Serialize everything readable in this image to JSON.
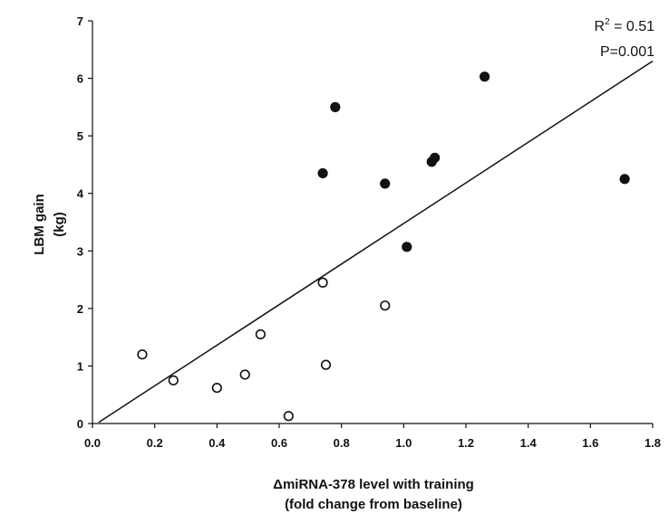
{
  "chart_data": {
    "type": "scatter",
    "xlabel_line1": "ΔmiRNA-378 level with training",
    "xlabel_line2": "(fold change from baseline)",
    "ylabel_line1": "LBM gain",
    "ylabel_line2": "(kg)",
    "xlim": [
      0,
      1.8
    ],
    "ylim": [
      0,
      7
    ],
    "x_ticks": [
      "0.0",
      "0.2",
      "0.4",
      "0.6",
      "0.8",
      "1.0",
      "1.2",
      "1.4",
      "1.6",
      "1.8"
    ],
    "y_ticks": [
      "0",
      "1",
      "2",
      "3",
      "4",
      "5",
      "6",
      "7"
    ],
    "stats": {
      "r2_prefix": "R",
      "r2_exp": "2",
      "r2_suffix": " = 0.51",
      "p_text": "P=0.001"
    },
    "fit_line": {
      "x": [
        0.02,
        1.8
      ],
      "y": [
        0.02,
        6.3
      ]
    },
    "series": [
      {
        "marker": "open-circle",
        "points": [
          {
            "x": 0.16,
            "y": 1.2
          },
          {
            "x": 0.26,
            "y": 0.75
          },
          {
            "x": 0.4,
            "y": 0.62
          },
          {
            "x": 0.49,
            "y": 0.85
          },
          {
            "x": 0.54,
            "y": 1.55
          },
          {
            "x": 0.63,
            "y": 0.13
          },
          {
            "x": 0.74,
            "y": 2.45
          },
          {
            "x": 0.75,
            "y": 1.02
          },
          {
            "x": 0.94,
            "y": 2.05
          }
        ]
      },
      {
        "marker": "filled-circle",
        "points": [
          {
            "x": 0.74,
            "y": 4.35
          },
          {
            "x": 0.78,
            "y": 5.5
          },
          {
            "x": 0.94,
            "y": 4.17
          },
          {
            "x": 1.01,
            "y": 3.07
          },
          {
            "x": 1.09,
            "y": 4.55
          },
          {
            "x": 1.1,
            "y": 4.62
          },
          {
            "x": 1.26,
            "y": 6.03
          },
          {
            "x": 1.71,
            "y": 4.25
          }
        ]
      }
    ]
  }
}
